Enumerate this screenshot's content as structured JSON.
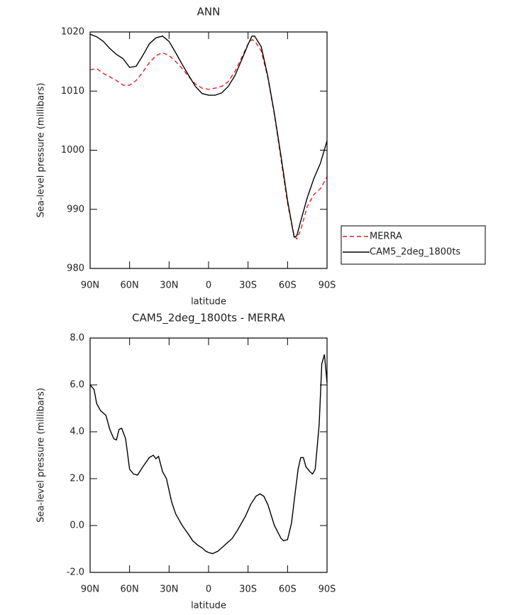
{
  "chart_data": [
    {
      "type": "line",
      "title": "ANN",
      "xlabel": "latitude",
      "ylabel": "Sea-level pressure (millibars)",
      "x": [
        90,
        85,
        80,
        75,
        70,
        65,
        60,
        55,
        50,
        45,
        40,
        35,
        30,
        25,
        20,
        15,
        10,
        5,
        0,
        -5,
        -10,
        -15,
        -20,
        -25,
        -30,
        -33,
        -35,
        -40,
        -45,
        -50,
        -55,
        -60,
        -65,
        -67,
        -70,
        -75,
        -80,
        -85,
        -90
      ],
      "series": [
        {
          "name": "MERRA",
          "color": "#e02020",
          "dash": true,
          "values": [
            1013.6,
            1013.8,
            1013.0,
            1012.4,
            1011.8,
            1011.0,
            1011.0,
            1011.8,
            1013.2,
            1014.8,
            1016.0,
            1016.5,
            1016.0,
            1015.0,
            1013.8,
            1012.4,
            1011.2,
            1010.5,
            1010.3,
            1010.5,
            1010.8,
            1011.6,
            1013.3,
            1015.6,
            1018.0,
            1018.7,
            1018.5,
            1016.8,
            1012.3,
            1006.0,
            998.5,
            991.0,
            985.5,
            985.0,
            986.5,
            990.5,
            992.5,
            993.5,
            995.5
          ]
        },
        {
          "name": "CAM5_2deg_1800ts",
          "color": "#000000",
          "dash": false,
          "values": [
            1019.6,
            1019.2,
            1018.4,
            1017.2,
            1016.2,
            1015.5,
            1014.0,
            1014.2,
            1016.0,
            1018.0,
            1019.0,
            1019.3,
            1018.4,
            1016.5,
            1014.5,
            1012.6,
            1010.8,
            1009.6,
            1009.3,
            1009.3,
            1009.7,
            1010.8,
            1012.6,
            1015.2,
            1017.9,
            1019.3,
            1019.3,
            1017.5,
            1012.5,
            1006.2,
            999.0,
            991.5,
            985.3,
            985.5,
            988.0,
            992.0,
            995.2,
            997.8,
            1001.6
          ]
        }
      ],
      "xlim": [
        90,
        -90
      ],
      "xticks": [
        {
          "value": 90,
          "label": "90N"
        },
        {
          "value": 60,
          "label": "60N"
        },
        {
          "value": 30,
          "label": "30N"
        },
        0,
        {
          "value": -30,
          "label": "30S"
        },
        {
          "value": -60,
          "label": "60S"
        },
        {
          "value": -90,
          "label": "90S"
        }
      ],
      "ylim": [
        980,
        1020
      ],
      "yticks": [
        980,
        990,
        1000,
        1010,
        1020
      ],
      "legend": "right"
    },
    {
      "type": "line",
      "title": "CAM5_2deg_1800ts - MERRA",
      "xlabel": "latitude",
      "ylabel": "Sea-level pressure (millibars)",
      "x": [
        90,
        87,
        85,
        82,
        78,
        75,
        72,
        70,
        68,
        66,
        63,
        60,
        57,
        54,
        50,
        45,
        42,
        40,
        38,
        35,
        32,
        28,
        25,
        20,
        15,
        12,
        8,
        5,
        2,
        0,
        -3,
        -7,
        -10,
        -13,
        -18,
        -22,
        -28,
        -32,
        -36,
        -39,
        -42,
        -45,
        -50,
        -55,
        -57,
        -60,
        -63,
        -66,
        -68,
        -70,
        -72,
        -74,
        -77,
        -79,
        -81,
        -84,
        -86,
        -88,
        -90
      ],
      "series": [
        {
          "name": "CAM5_2deg_1800ts - MERRA",
          "color": "#000000",
          "dash": false,
          "values": [
            6.0,
            5.8,
            5.2,
            4.9,
            4.7,
            4.1,
            3.7,
            3.65,
            4.1,
            4.15,
            3.7,
            2.4,
            2.2,
            2.15,
            2.5,
            2.9,
            3.0,
            2.85,
            2.95,
            2.3,
            2.0,
            1.0,
            0.5,
            0.0,
            -0.4,
            -0.65,
            -0.85,
            -0.95,
            -1.1,
            -1.15,
            -1.2,
            -1.1,
            -0.95,
            -0.8,
            -0.55,
            -0.2,
            0.4,
            0.9,
            1.25,
            1.35,
            1.25,
            0.9,
            0.0,
            -0.55,
            -0.65,
            -0.6,
            0.1,
            1.5,
            2.4,
            2.9,
            2.9,
            2.5,
            2.3,
            2.2,
            2.4,
            4.3,
            6.9,
            7.3,
            6.1
          ]
        }
      ],
      "xlim": [
        90,
        -90
      ],
      "xticks": [
        {
          "value": 90,
          "label": "90N"
        },
        {
          "value": 60,
          "label": "60N"
        },
        {
          "value": 30,
          "label": "30N"
        },
        0,
        {
          "value": -30,
          "label": "30S"
        },
        {
          "value": -60,
          "label": "60S"
        },
        {
          "value": -90,
          "label": "90S"
        }
      ],
      "ylim": [
        -2,
        8
      ],
      "yticks": [
        {
          "value": -2,
          "label": "-2.0"
        },
        {
          "value": 0,
          "label": "0.0"
        },
        {
          "value": 2,
          "label": "2.0"
        },
        {
          "value": 4,
          "label": "4.0"
        },
        {
          "value": 6,
          "label": "6.0"
        },
        {
          "value": 8,
          "label": "8.0"
        }
      ]
    }
  ]
}
